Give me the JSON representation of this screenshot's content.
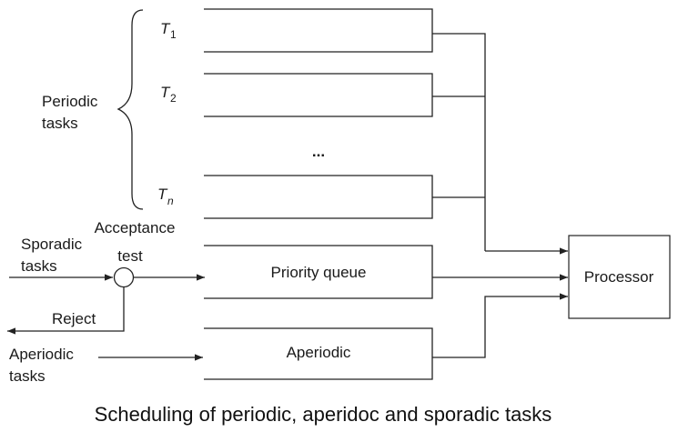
{
  "labels": {
    "periodic_tasks_line1": "Periodic",
    "periodic_tasks_line2": "tasks",
    "task1_letter": "T",
    "task1_sub": "1",
    "task2_letter": "T",
    "task2_sub": "2",
    "taskn_letter": "T",
    "taskn_sub": "n",
    "ellipsis": "...",
    "acceptance_line1": "Acceptance",
    "acceptance_line2": "test",
    "sporadic_line1": "Sporadic",
    "sporadic_line2": "tasks",
    "reject": "Reject",
    "aperiodic_tasks_line1": "Aperiodic",
    "aperiodic_tasks_line2": "tasks",
    "priority_queue": "Priority queue",
    "aperiodic_queue": "Aperiodic",
    "processor": "Processor"
  },
  "caption": "Scheduling of periodic, aperidoc and sporadic tasks"
}
